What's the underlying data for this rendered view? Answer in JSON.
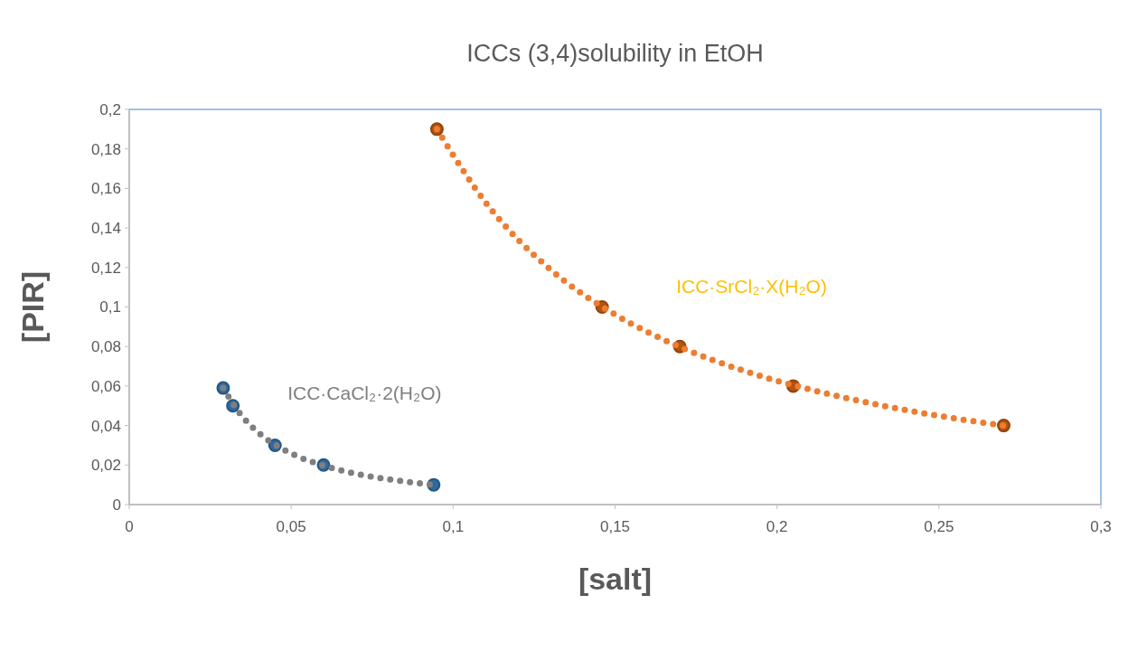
{
  "chart_data": {
    "type": "scatter",
    "title": "ICCs (3,4)solubility in EtOH",
    "xlabel": "[salt]",
    "ylabel": "[PIR]",
    "xlim": [
      0,
      0.3
    ],
    "ylim": [
      0,
      0.2
    ],
    "xticks": [
      0,
      {
        "value": 0.05,
        "label": "0,05"
      },
      {
        "value": 0.1,
        "label": "0,1"
      },
      {
        "value": 0.15,
        "label": "0,15"
      },
      {
        "value": 0.2,
        "label": "0,2"
      },
      {
        "value": 0.25,
        "label": "0,25"
      },
      {
        "value": 0.3,
        "label": "0,3"
      }
    ],
    "yticks": [
      0,
      {
        "value": 0.02,
        "label": "0,02"
      },
      {
        "value": 0.04,
        "label": "0,04"
      },
      {
        "value": 0.06,
        "label": "0,06"
      },
      {
        "value": 0.08,
        "label": "0,08"
      },
      {
        "value": 0.1,
        "label": "0,1"
      },
      {
        "value": 0.12,
        "label": "0,12"
      },
      {
        "value": 0.14,
        "label": "0,14"
      },
      {
        "value": 0.16,
        "label": "0,16"
      },
      {
        "value": 0.18,
        "label": "0,18"
      },
      {
        "value": 0.2,
        "label": "0,2"
      }
    ],
    "series": [
      {
        "marker": "circle",
        "color": "#2e6aa1",
        "x": [
          0.029,
          0.032,
          0.045,
          0.06,
          0.094
        ],
        "values": [
          0.059,
          0.05,
          0.03,
          0.02,
          0.01
        ]
      },
      {
        "marker": "circle",
        "color": "#b5530f",
        "x": [
          0.095,
          0.146,
          0.17,
          0.205,
          0.27
        ],
        "values": [
          0.19,
          0.1,
          0.08,
          0.06,
          0.04
        ]
      },
      {
        "type": "line",
        "line_style": "dotted",
        "color": "#7f7f7f",
        "x": [
          0.029,
          0.035,
          0.04,
          0.05,
          0.06,
          0.07,
          0.08,
          0.094
        ],
        "values": [
          0.059,
          0.0444,
          0.0363,
          0.0259,
          0.0197,
          0.0156,
          0.0128,
          0.01
        ]
      },
      {
        "type": "line",
        "line_style": "dotted",
        "color": "#ed7d31",
        "x": [
          0.095,
          0.11,
          0.13,
          0.15,
          0.17,
          0.19,
          0.21,
          0.23,
          0.25,
          0.27
        ],
        "values": [
          0.19,
          0.153,
          0.119,
          0.0962,
          0.0798,
          0.0676,
          0.0583,
          0.0509,
          0.0449,
          0.04
        ]
      }
    ],
    "annotations": [
      "ICC·CaCl₂·2(H₂O)",
      "ICC·SrCl₂·X(H₂O)"
    ]
  }
}
